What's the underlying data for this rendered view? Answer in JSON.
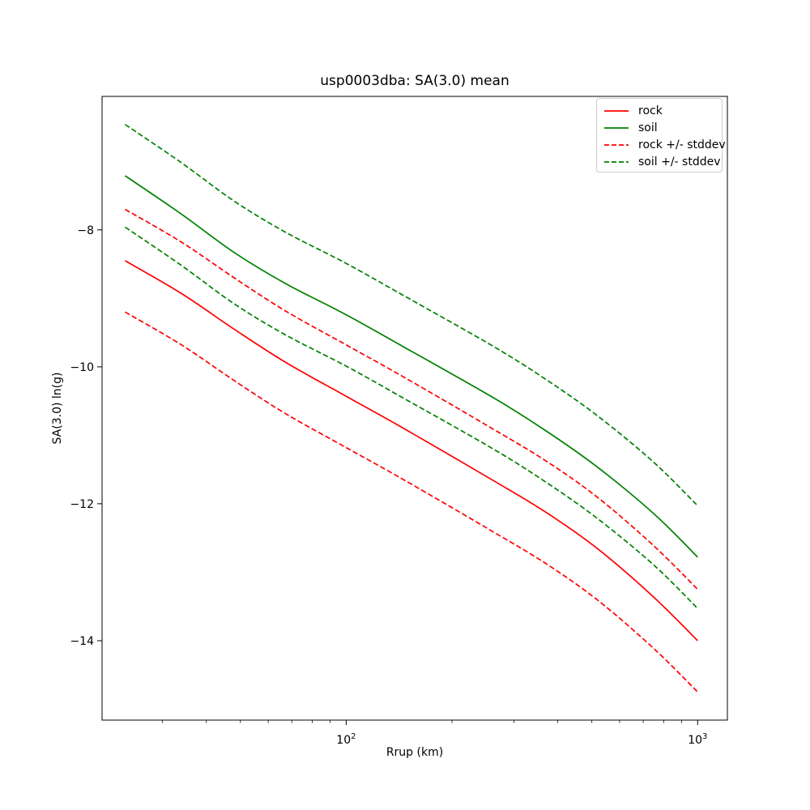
{
  "chart_data": {
    "type": "line",
    "title": "usp0003dba: SA(3.0) mean",
    "xlabel": "Rrup (km)",
    "ylabel": "SA(3.0) ln(g)",
    "x_scale": "log",
    "grid": false,
    "legend_position": "upper right",
    "background_color": "#ffffff",
    "xlim": [
      20.2,
      1215
    ],
    "ylim": [
      -15.16,
      -6.05
    ],
    "x": [
      23.5,
      34,
      48,
      67,
      100,
      147,
      262,
      369,
      520,
      752,
      1000
    ],
    "series": [
      {
        "name": "rock",
        "color": "#ff0000",
        "linestyle": "solid",
        "values": [
          -8.45,
          -8.93,
          -9.45,
          -9.93,
          -10.43,
          -10.91,
          -11.66,
          -12.12,
          -12.66,
          -13.37,
          -14.0
        ]
      },
      {
        "name": "soil",
        "color": "#008000",
        "linestyle": "solid",
        "values": [
          -7.21,
          -7.77,
          -8.33,
          -8.78,
          -9.24,
          -9.72,
          -10.45,
          -10.93,
          -11.47,
          -12.15,
          -12.78
        ]
      },
      {
        "name": "rock +/- stddev",
        "color": "#ff0000",
        "linestyle": "dashed",
        "band_of": "rock",
        "stddev": 0.75
      },
      {
        "name": "soil +/- stddev",
        "color": "#008000",
        "linestyle": "dashed",
        "band_of": "soil",
        "stddev": 0.75
      }
    ],
    "x_major_ticks": [
      {
        "value": 100,
        "base": "10",
        "exp": "2"
      },
      {
        "value": 1000,
        "base": "10",
        "exp": "3"
      }
    ],
    "x_minor_ticks": [
      30,
      40,
      50,
      60,
      70,
      80,
      90,
      200,
      300,
      400,
      500,
      600,
      700,
      800,
      900
    ],
    "y_ticks": [
      {
        "value": -8,
        "label": "−8"
      },
      {
        "value": -10,
        "label": "−10"
      },
      {
        "value": -12,
        "label": "−12"
      },
      {
        "value": -14,
        "label": "−14"
      }
    ]
  }
}
